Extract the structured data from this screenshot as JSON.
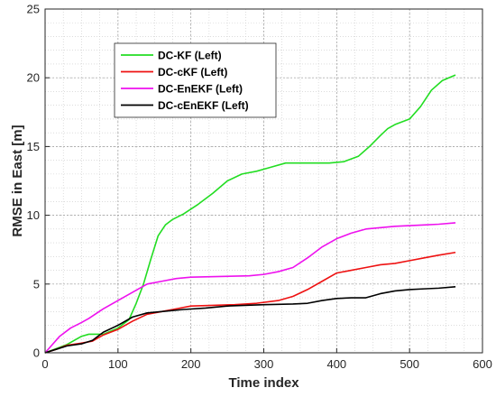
{
  "chart_data": {
    "type": "line",
    "xlabel": "Time index",
    "ylabel": "RMSE in East [m]",
    "xlim": [
      0,
      600
    ],
    "ylim": [
      0,
      25
    ],
    "xticks": [
      0,
      100,
      200,
      300,
      400,
      500,
      600
    ],
    "yticks": [
      0,
      5,
      10,
      15,
      20,
      25
    ],
    "grid": true,
    "minor_grid": true,
    "legend_position": "top-left-inside",
    "series": [
      {
        "name": "DC-KF (Left)",
        "color": "#22dd22",
        "x": [
          0,
          10,
          30,
          50,
          60,
          80,
          100,
          115,
          125,
          135,
          145,
          155,
          165,
          175,
          190,
          210,
          230,
          250,
          270,
          290,
          310,
          330,
          350,
          370,
          390,
          410,
          430,
          445,
          460,
          470,
          480,
          500,
          515,
          530,
          545,
          563
        ],
        "y": [
          0,
          0.2,
          0.6,
          1.2,
          1.35,
          1.35,
          1.8,
          2.4,
          3.6,
          5.0,
          6.8,
          8.5,
          9.3,
          9.7,
          10.1,
          10.8,
          11.6,
          12.5,
          13.0,
          13.2,
          13.5,
          13.8,
          13.8,
          13.8,
          13.8,
          13.9,
          14.3,
          15.0,
          15.8,
          16.3,
          16.6,
          17.0,
          17.9,
          19.1,
          19.8,
          20.2
        ]
      },
      {
        "name": "DC-cKF (Left)",
        "color": "#ee1111",
        "x": [
          0,
          15,
          30,
          50,
          65,
          80,
          100,
          120,
          140,
          160,
          180,
          200,
          230,
          260,
          290,
          320,
          340,
          360,
          380,
          400,
          420,
          440,
          460,
          480,
          500,
          520,
          540,
          563
        ],
        "y": [
          0,
          0.25,
          0.55,
          0.7,
          0.85,
          1.3,
          1.7,
          2.3,
          2.8,
          3.0,
          3.2,
          3.4,
          3.45,
          3.5,
          3.6,
          3.8,
          4.1,
          4.6,
          5.2,
          5.8,
          6.0,
          6.2,
          6.4,
          6.5,
          6.7,
          6.9,
          7.1,
          7.3
        ]
      },
      {
        "name": "DC-EnEKF (Left)",
        "color": "#ee11ee",
        "x": [
          0,
          10,
          20,
          35,
          50,
          60,
          80,
          100,
          120,
          140,
          160,
          180,
          200,
          240,
          280,
          300,
          320,
          340,
          360,
          380,
          400,
          420,
          440,
          460,
          480,
          500,
          520,
          540,
          563
        ],
        "y": [
          0,
          0.6,
          1.2,
          1.8,
          2.2,
          2.5,
          3.2,
          3.8,
          4.4,
          5.0,
          5.2,
          5.4,
          5.5,
          5.55,
          5.6,
          5.7,
          5.9,
          6.2,
          6.9,
          7.7,
          8.3,
          8.7,
          9.0,
          9.1,
          9.2,
          9.25,
          9.3,
          9.35,
          9.45
        ]
      },
      {
        "name": "DC-cEnEKF (Left)",
        "color": "#000000",
        "x": [
          0,
          15,
          30,
          50,
          65,
          80,
          100,
          120,
          140,
          160,
          190,
          220,
          250,
          300,
          340,
          360,
          380,
          400,
          420,
          440,
          460,
          480,
          500,
          520,
          540,
          563
        ],
        "y": [
          0,
          0.25,
          0.5,
          0.65,
          0.9,
          1.5,
          2.0,
          2.6,
          2.9,
          3.0,
          3.15,
          3.25,
          3.4,
          3.5,
          3.55,
          3.6,
          3.8,
          3.95,
          4.0,
          4.0,
          4.3,
          4.5,
          4.6,
          4.65,
          4.7,
          4.8
        ]
      }
    ]
  }
}
